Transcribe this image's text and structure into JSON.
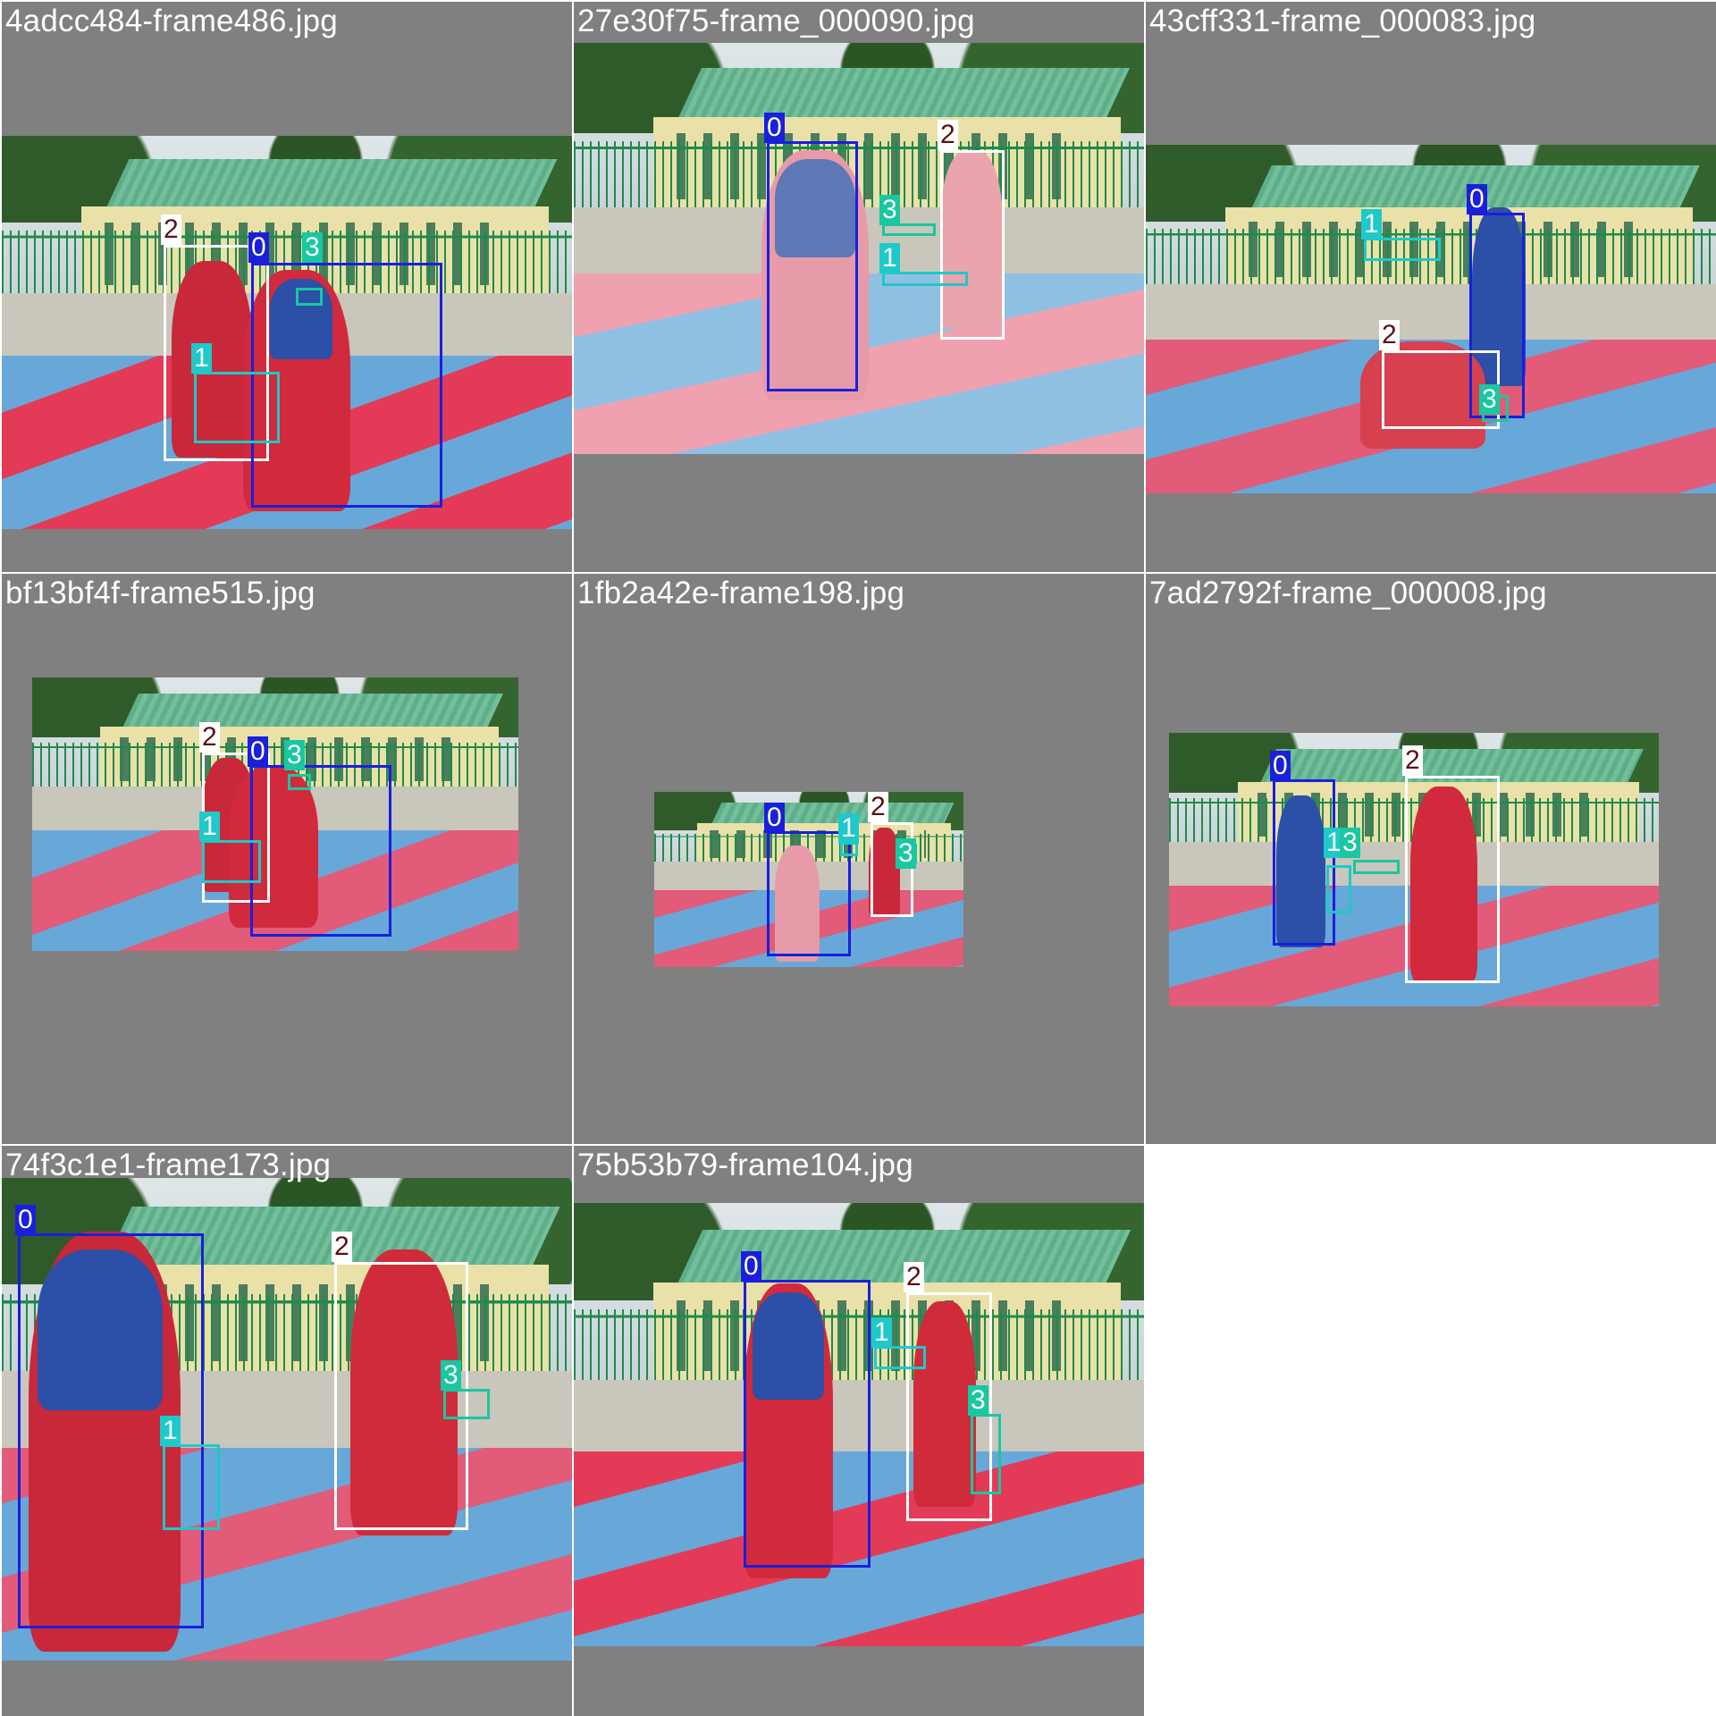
{
  "tiles": [
    {
      "filename": "4adcc484-frame486.jpg",
      "labels": [
        "0",
        "1",
        "2",
        "3"
      ]
    },
    {
      "filename": "27e30f75-frame_000090.jpg",
      "labels": [
        "0",
        "1",
        "2",
        "3"
      ]
    },
    {
      "filename": "43cff331-frame_000083.jpg",
      "labels": [
        "0",
        "1",
        "2",
        "3"
      ]
    },
    {
      "filename": "bf13bf4f-frame515.jpg",
      "labels": [
        "0",
        "1",
        "2",
        "3"
      ]
    },
    {
      "filename": "1fb2a42e-frame198.jpg",
      "labels": [
        "0",
        "1",
        "2",
        "3"
      ]
    },
    {
      "filename": "7ad2792f-frame_000008.jpg",
      "labels": [
        "0",
        "1",
        "2",
        "3"
      ]
    },
    {
      "filename": "74f3c1e1-frame173.jpg",
      "labels": [
        "0",
        "1",
        "2",
        "3"
      ]
    },
    {
      "filename": "75b53b79-frame104.jpg",
      "labels": [
        "0",
        "1",
        "2",
        "3"
      ]
    }
  ],
  "colors": {
    "class_0": "#1a1fdc",
    "class_1": "#1ec9c9",
    "class_2": "#ffffff",
    "class_3": "#19c7a0",
    "letterbox": "#808080"
  }
}
